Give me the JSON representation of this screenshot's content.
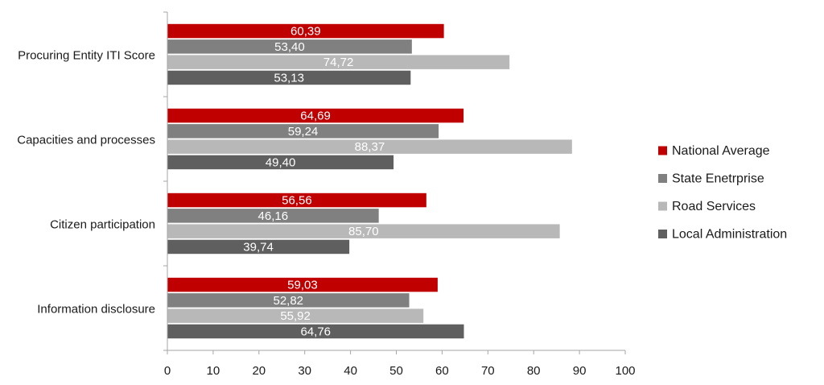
{
  "chart_data": {
    "type": "bar",
    "orientation": "horizontal",
    "categories": [
      "Procuring Entity ITI Score",
      "Capacities and processes",
      "Citizen participation",
      "Information disclosure"
    ],
    "series": [
      {
        "name": "National Average",
        "color": "#c00000",
        "values": [
          60.39,
          64.69,
          56.56,
          59.03
        ],
        "labels": [
          "60,39",
          "64,69",
          "56,56",
          "59,03"
        ]
      },
      {
        "name": "State Enetrprise",
        "color": "#808080",
        "values": [
          53.4,
          59.24,
          46.16,
          52.82
        ],
        "labels": [
          "53,40",
          "59,24",
          "46,16",
          "52,82"
        ]
      },
      {
        "name": "Road Services",
        "color": "#b8b8b8",
        "values": [
          74.72,
          88.37,
          85.7,
          55.92
        ],
        "labels": [
          "74,72",
          "88,37",
          "85,70",
          "55,92"
        ]
      },
      {
        "name": "Local Administration",
        "color": "#5f5f5f",
        "values": [
          53.13,
          49.4,
          39.74,
          64.76
        ],
        "labels": [
          "53,13",
          "49,40",
          "39,74",
          "64,76"
        ]
      }
    ],
    "xlim": [
      0,
      100
    ],
    "xticks": [
      "0",
      "10",
      "20",
      "30",
      "40",
      "50",
      "60",
      "70",
      "80",
      "90",
      "100"
    ],
    "grid": false,
    "legend_position": "right"
  }
}
